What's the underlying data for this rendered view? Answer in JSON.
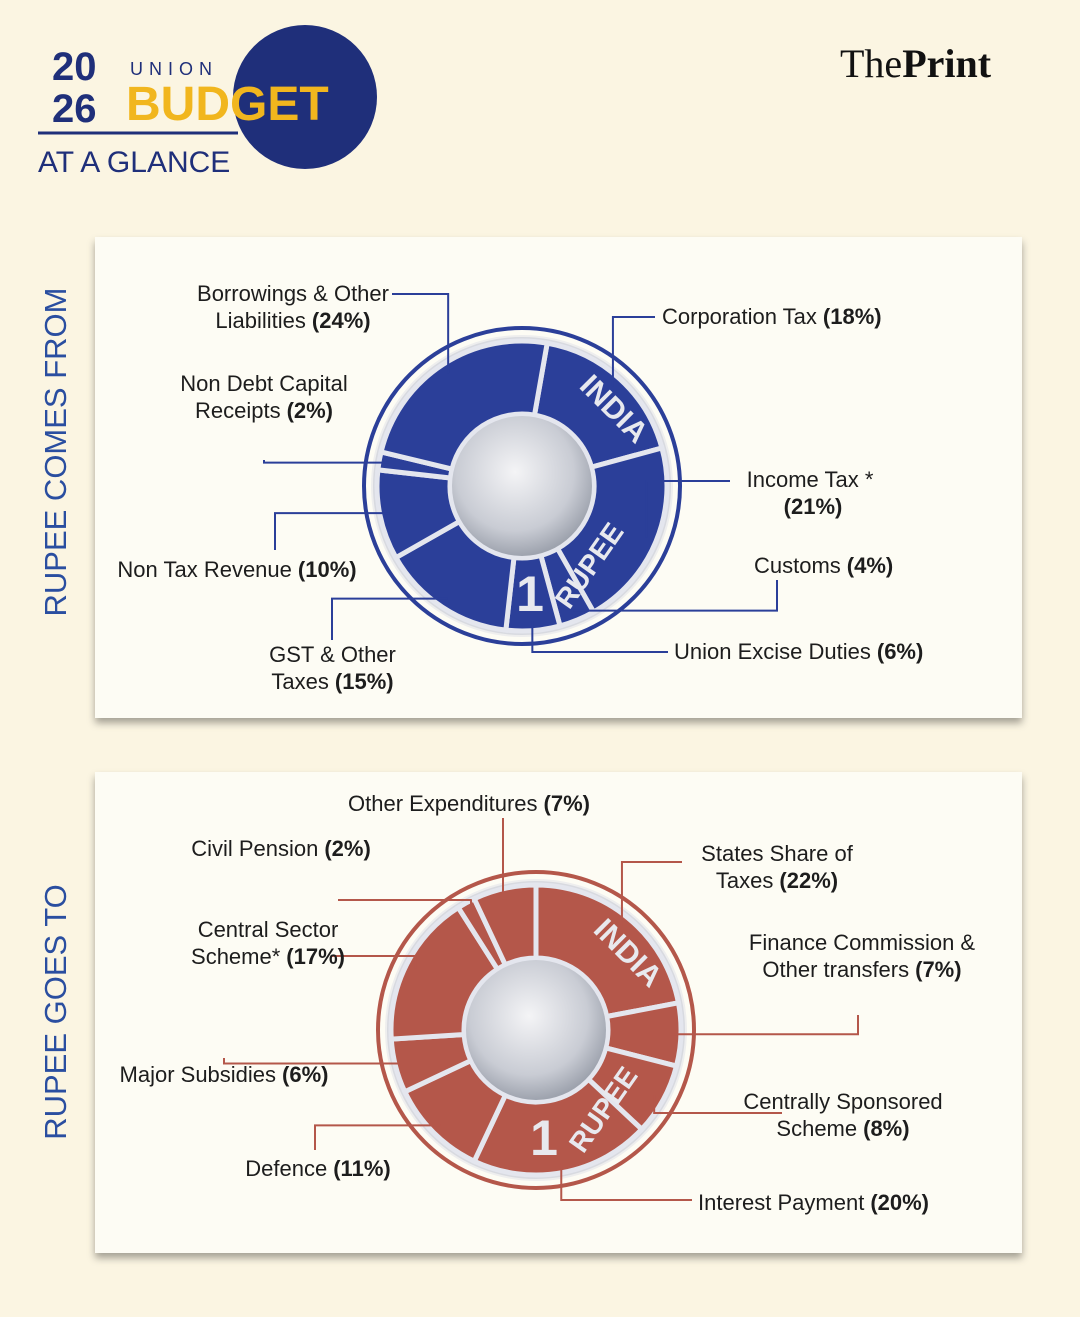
{
  "header": {
    "year_top": "20",
    "year_bottom": "26",
    "union": "UNION",
    "budget": "BUDGET",
    "subtitle": "AT A GLANCE",
    "brand_light": "The",
    "brand_bold": "Print"
  },
  "coin_text": [
    "INDIA",
    "RUPEE",
    "1"
  ],
  "chart_data": [
    {
      "type": "pie",
      "title": "RUPEE COMES FROM",
      "color": "#2b3f99",
      "categories": [
        "Corporation Tax",
        "Income Tax *",
        "Customs",
        "Union Excise Duties",
        "GST & Other Taxes",
        "Non Tax Revenue",
        "Non Debt Capital Receipts",
        "Borrowings & Other Liabilities"
      ],
      "values": [
        18,
        21,
        4,
        6,
        15,
        10,
        2,
        24
      ],
      "value_labels": [
        "(18%)",
        "(21%)",
        "(4%)",
        "(6%)",
        "(15%)",
        "(10%)",
        "(2%)",
        "(24%)"
      ]
    },
    {
      "type": "pie",
      "title": "RUPEE GOES TO",
      "color": "#b4574a",
      "categories": [
        "States Share of Taxes",
        "Finance Commission & Other transfers",
        "Centrally Sponsored Scheme",
        "Interest Payment",
        "Defence",
        "Major Subsidies",
        "Central Sector Scheme*",
        "Civil Pension",
        "Other Expenditures"
      ],
      "values": [
        22,
        7,
        8,
        20,
        11,
        6,
        17,
        2,
        7
      ],
      "value_labels": [
        "(22%)",
        "(7%)",
        "(8%)",
        "(20%)",
        "(11%)",
        "(6%)",
        "(17%)",
        "(2%)",
        "(7%)"
      ]
    }
  ]
}
